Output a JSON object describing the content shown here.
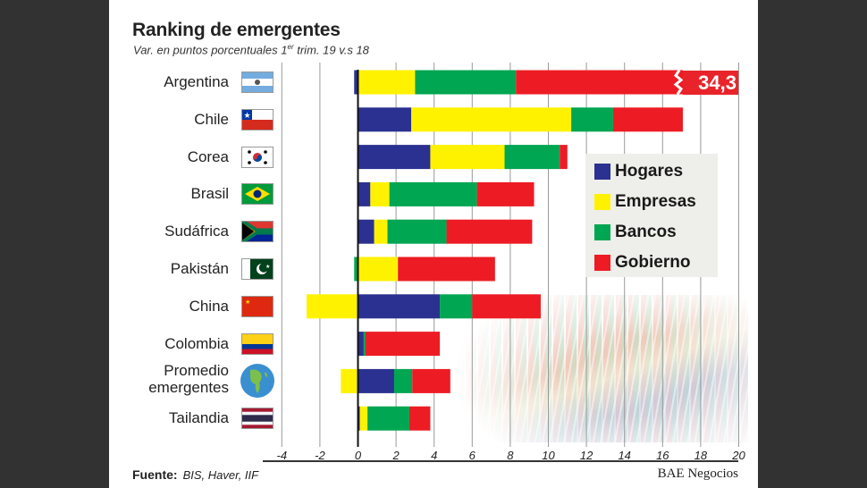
{
  "chart_data": {
    "type": "bar",
    "orientation": "horizontal",
    "stacked": true,
    "title": "Ranking de emergentes",
    "subtitle": "Var. en puntos porcentuales 1er trim. 19 v.s 18",
    "xlabel": "",
    "ylabel": "",
    "xlim": [
      -4,
      20
    ],
    "xticks": [
      -4,
      -2,
      0,
      2,
      4,
      6,
      8,
      10,
      12,
      14,
      16,
      18,
      20
    ],
    "grid": true,
    "legend_position": "right",
    "categories": [
      "Argentina",
      "Chile",
      "Corea",
      "Brasil",
      "Sudáfrica",
      "Pakistán",
      "China",
      "Colombia",
      "Promedio emergentes",
      "Tailandia"
    ],
    "series": [
      {
        "name": "Hogares",
        "color": "#2b3190",
        "values": [
          -0.2,
          2.8,
          3.8,
          0.65,
          0.85,
          0.0,
          4.3,
          0.3,
          1.9,
          0.1
        ]
      },
      {
        "name": "Empresas",
        "color": "#fff200",
        "values": [
          3.0,
          8.4,
          3.9,
          1.0,
          0.7,
          2.1,
          -2.7,
          0.0,
          -0.9,
          0.4
        ]
      },
      {
        "name": "Bancos",
        "color": "#00a651",
        "values": [
          5.3,
          2.2,
          2.9,
          4.6,
          3.1,
          -0.2,
          1.7,
          0.1,
          0.95,
          2.2
        ]
      },
      {
        "name": "Gobierno",
        "color": "#ed1c24",
        "values": [
          26.2,
          3.3,
          0.4,
          3.0,
          4.5,
          5.1,
          3.6,
          3.9,
          2.0,
          1.1
        ]
      }
    ],
    "annotations": [
      {
        "category": "Argentina",
        "text": "34,3",
        "note": "bar truncated (axis break)"
      }
    ]
  },
  "flags": [
    "argentina",
    "chile",
    "korea",
    "brazil",
    "south-africa",
    "pakistan",
    "china",
    "colombia",
    "globe",
    "thailand"
  ],
  "footer": {
    "source_label": "Fuente:",
    "source_text": "BIS, Haver, IIF",
    "brand": "BAE Negocios"
  }
}
